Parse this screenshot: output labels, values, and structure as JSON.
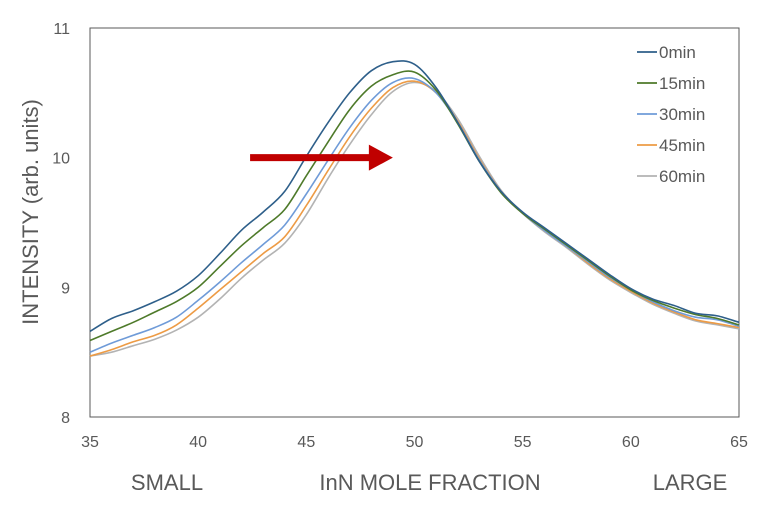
{
  "chart_data": {
    "type": "line",
    "title": "",
    "ylabel": "INTENSITY (arb. units)",
    "xlabel": "InN MOLE FRACTION",
    "xlabel_left": "SMALL",
    "xlabel_right": "LARGE",
    "xlim": [
      35,
      65
    ],
    "ylim": [
      8,
      11
    ],
    "xticks": [
      "35",
      "40",
      "45",
      "50",
      "55",
      "60",
      "65"
    ],
    "yticks": [
      "8",
      "9",
      "10",
      "11"
    ],
    "grid": false,
    "legend_position": "top-right",
    "arrow": {
      "from": [
        42.4,
        10.0
      ],
      "to": [
        49.0,
        10.0
      ],
      "color": "#c00000"
    },
    "series": [
      {
        "name": "0min",
        "color": "#2e5f8a",
        "x": [
          35,
          36,
          37,
          38,
          39,
          40,
          41,
          42,
          43,
          44,
          45,
          46,
          47,
          48,
          49,
          50,
          51,
          52,
          53,
          54,
          55,
          56,
          57,
          58,
          59,
          60,
          61,
          62,
          63,
          64,
          65
        ],
        "y": [
          8.66,
          8.76,
          8.82,
          8.89,
          8.97,
          9.09,
          9.26,
          9.44,
          9.58,
          9.74,
          10.01,
          10.27,
          10.5,
          10.67,
          10.74,
          10.72,
          10.54,
          10.27,
          9.97,
          9.74,
          9.58,
          9.46,
          9.34,
          9.22,
          9.1,
          8.99,
          8.91,
          8.86,
          8.8,
          8.78,
          8.73
        ]
      },
      {
        "name": "15min",
        "color": "#4e7a2a",
        "x": [
          35,
          36,
          37,
          38,
          39,
          40,
          41,
          42,
          43,
          44,
          45,
          46,
          47,
          48,
          49,
          50,
          51,
          52,
          53,
          54,
          55,
          56,
          57,
          58,
          59,
          60,
          61,
          62,
          63,
          64,
          65
        ],
        "y": [
          8.59,
          8.66,
          8.73,
          8.81,
          8.89,
          9.0,
          9.16,
          9.32,
          9.46,
          9.6,
          9.86,
          10.12,
          10.37,
          10.55,
          10.64,
          10.66,
          10.52,
          10.26,
          9.97,
          9.73,
          9.57,
          9.45,
          9.33,
          9.21,
          9.09,
          8.98,
          8.9,
          8.84,
          8.79,
          8.76,
          8.71
        ]
      },
      {
        "name": "30min",
        "color": "#6f9bd8",
        "x": [
          35,
          36,
          37,
          38,
          39,
          40,
          41,
          42,
          43,
          44,
          45,
          46,
          47,
          48,
          49,
          50,
          51,
          52,
          53,
          54,
          55,
          56,
          57,
          58,
          59,
          60,
          61,
          62,
          63,
          64,
          65
        ],
        "y": [
          8.5,
          8.57,
          8.63,
          8.69,
          8.77,
          8.9,
          9.04,
          9.19,
          9.33,
          9.48,
          9.72,
          9.98,
          10.23,
          10.44,
          10.58,
          10.61,
          10.5,
          10.27,
          9.98,
          9.74,
          9.57,
          9.44,
          9.32,
          9.2,
          9.08,
          8.98,
          8.89,
          8.82,
          8.77,
          8.75,
          8.7
        ]
      },
      {
        "name": "45min",
        "color": "#ed9b45",
        "x": [
          35,
          36,
          37,
          38,
          39,
          40,
          41,
          42,
          43,
          44,
          45,
          46,
          47,
          48,
          49,
          50,
          51,
          52,
          53,
          54,
          55,
          56,
          57,
          58,
          59,
          60,
          61,
          62,
          63,
          64,
          65
        ],
        "y": [
          8.47,
          8.52,
          8.58,
          8.63,
          8.71,
          8.84,
          8.98,
          9.12,
          9.26,
          9.39,
          9.63,
          9.9,
          10.16,
          10.38,
          10.54,
          10.59,
          10.5,
          10.28,
          9.99,
          9.74,
          9.57,
          9.44,
          9.32,
          9.19,
          9.07,
          8.97,
          8.88,
          8.81,
          8.75,
          8.72,
          8.69
        ]
      },
      {
        "name": "60min",
        "color": "#b3b3b3",
        "x": [
          35,
          36,
          37,
          38,
          39,
          40,
          41,
          42,
          43,
          44,
          45,
          46,
          47,
          48,
          49,
          50,
          51,
          52,
          53,
          54,
          55,
          56,
          57,
          58,
          59,
          60,
          61,
          62,
          63,
          64,
          65
        ],
        "y": [
          8.47,
          8.5,
          8.55,
          8.6,
          8.67,
          8.77,
          8.91,
          9.07,
          9.21,
          9.34,
          9.56,
          9.84,
          10.1,
          10.33,
          10.51,
          10.58,
          10.51,
          10.3,
          10.01,
          9.75,
          9.57,
          9.43,
          9.31,
          9.18,
          9.06,
          8.96,
          8.87,
          8.8,
          8.74,
          8.71,
          8.68
        ]
      }
    ]
  }
}
